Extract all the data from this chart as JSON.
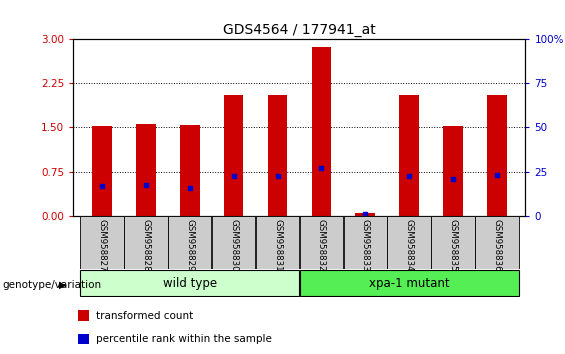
{
  "title": "GDS4564 / 177941_at",
  "samples": [
    "GSM958827",
    "GSM958828",
    "GSM958829",
    "GSM958830",
    "GSM958831",
    "GSM958832",
    "GSM958833",
    "GSM958834",
    "GSM958835",
    "GSM958836"
  ],
  "transformed_count": [
    1.52,
    1.55,
    1.54,
    2.05,
    2.05,
    2.87,
    0.05,
    2.05,
    1.52,
    2.05
  ],
  "percentile_rank_left": [
    0.5,
    0.52,
    0.48,
    0.68,
    0.68,
    0.82,
    0.04,
    0.68,
    0.62,
    0.7
  ],
  "ylim_left": [
    0,
    3
  ],
  "ylim_right": [
    0,
    100
  ],
  "yticks_left": [
    0,
    0.75,
    1.5,
    2.25,
    3
  ],
  "yticks_right": [
    0,
    25,
    50,
    75,
    100
  ],
  "groups": [
    {
      "label": "wild type",
      "indices": [
        0,
        1,
        2,
        3,
        4
      ],
      "color": "#ccffcc"
    },
    {
      "label": "xpa-1 mutant",
      "indices": [
        5,
        6,
        7,
        8,
        9
      ],
      "color": "#55ee55"
    }
  ],
  "bar_color": "#cc0000",
  "dot_color": "#0000cc",
  "bar_width": 0.45,
  "grid_color": "black",
  "tick_color_left": "#cc0000",
  "tick_color_right": "#0000cc",
  "xlabel_group": "genotype/variation",
  "legend_labels": [
    "transformed count",
    "percentile rank within the sample"
  ],
  "legend_colors": [
    "#cc0000",
    "#0000cc"
  ],
  "bg_plot": "#ffffff",
  "bg_xtick": "#cccccc",
  "group_label_fontsize": 8.5,
  "title_fontsize": 10,
  "axis_fontsize": 7.5
}
